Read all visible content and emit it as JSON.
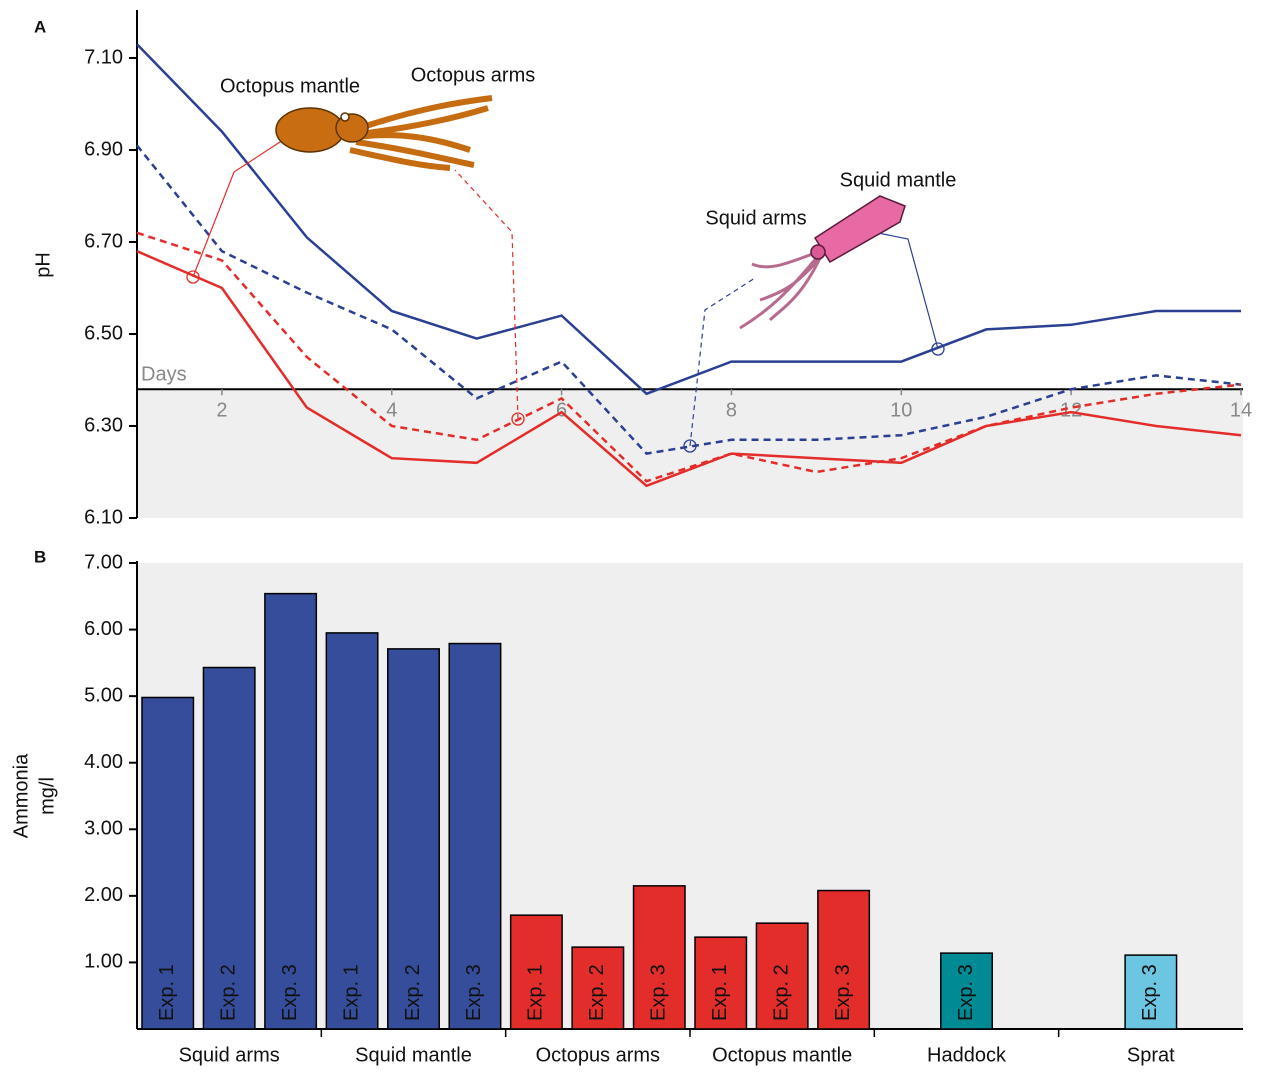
{
  "chart_data": [
    {
      "type": "line",
      "panel": "A",
      "ylabel": "pH",
      "xlabel": "Days",
      "x": [
        1,
        2,
        3,
        4,
        5,
        6,
        7,
        8,
        9,
        10,
        11,
        12,
        13,
        14
      ],
      "xlim": [
        1,
        14
      ],
      "xticks": [
        2,
        4,
        6,
        8,
        10,
        12,
        14
      ],
      "ylim": [
        6.1,
        7.2
      ],
      "yticks": [
        {
          "value": 6.1,
          "label": "6.10"
        },
        {
          "value": 6.3,
          "label": "6.30"
        },
        {
          "value": 6.5,
          "label": "6.50"
        },
        {
          "value": 6.7,
          "label": "6.70"
        },
        {
          "value": 6.9,
          "label": "6.90"
        },
        {
          "value": 7.1,
          "label": "7.10"
        }
      ],
      "xaxis_at": 6.38,
      "series": [
        {
          "name": "Squid mantle",
          "color": "#2b3f93",
          "style": "solid",
          "values": [
            7.13,
            6.94,
            6.71,
            6.55,
            6.49,
            6.54,
            6.37,
            6.44,
            6.44,
            6.44,
            6.51,
            6.52,
            6.55,
            6.55
          ]
        },
        {
          "name": "Squid arms",
          "color": "#2b3f93",
          "style": "dashed",
          "values": [
            6.91,
            6.68,
            6.59,
            6.51,
            6.36,
            6.44,
            6.24,
            6.27,
            6.27,
            6.28,
            6.32,
            6.38,
            6.41,
            6.39
          ]
        },
        {
          "name": "Octopus mantle",
          "color": "#e32d2a",
          "style": "solid",
          "values": [
            6.68,
            6.6,
            6.34,
            6.23,
            6.22,
            6.33,
            6.17,
            6.24,
            6.23,
            6.22,
            6.3,
            6.33,
            6.3,
            6.28
          ]
        },
        {
          "name": "Octopus arms",
          "color": "#e32d2a",
          "style": "dashed",
          "values": [
            6.72,
            6.66,
            6.45,
            6.3,
            6.27,
            6.36,
            6.18,
            6.24,
            6.2,
            6.23,
            6.3,
            6.34,
            6.37,
            6.39
          ]
        }
      ]
    },
    {
      "type": "bar",
      "panel": "B",
      "ylabel": "Ammonia",
      "yunit": "mg/l",
      "categories": [
        "Squid arms",
        "Squid mantle",
        "Octopus arms",
        "Octopus mantle",
        "Haddock",
        "Sprat"
      ],
      "colors": [
        "#354d9a",
        "#354d9a",
        "#e32d2a",
        "#e32d2a",
        "#008b94",
        "#6cc6e2"
      ],
      "ylim": [
        0,
        7
      ],
      "yticks": [
        {
          "value": 1,
          "label": "1.00"
        },
        {
          "value": 2,
          "label": "2.00"
        },
        {
          "value": 3,
          "label": "3.00"
        },
        {
          "value": 4,
          "label": "4.00"
        },
        {
          "value": 5,
          "label": "5.00"
        },
        {
          "value": 6,
          "label": "6.00"
        },
        {
          "value": 7,
          "label": "7.00"
        }
      ],
      "series": [
        {
          "name": "Exp. 1",
          "values": [
            4.98,
            5.95,
            1.71,
            1.38,
            null,
            null
          ]
        },
        {
          "name": "Exp. 2",
          "values": [
            5.43,
            5.71,
            1.23,
            1.59,
            null,
            null
          ]
        },
        {
          "name": "Exp. 3",
          "values": [
            6.54,
            5.79,
            2.15,
            2.08,
            1.14,
            1.11
          ]
        }
      ]
    }
  ]
}
